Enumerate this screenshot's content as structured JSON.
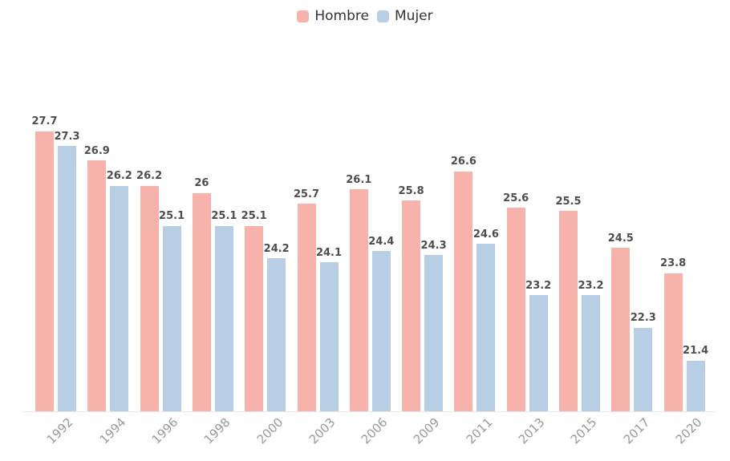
{
  "chart_data": {
    "type": "bar",
    "title": "",
    "categories": [
      "1992",
      "1994",
      "1996",
      "1998",
      "2000",
      "2003",
      "2006",
      "2009",
      "2011",
      "2013",
      "2015",
      "2017",
      "2020"
    ],
    "series": [
      {
        "name": "Hombre",
        "color": "#f8b2ac",
        "values": [
          27.7,
          26.9,
          26.2,
          26,
          25.1,
          25.7,
          26.1,
          25.8,
          26.6,
          25.6,
          25.5,
          24.5,
          23.8
        ]
      },
      {
        "name": "Mujer",
        "color": "#b7cee4",
        "values": [
          27.3,
          26.2,
          25.1,
          25.1,
          24.2,
          24.1,
          24.4,
          24.3,
          24.6,
          23.2,
          23.2,
          22.3,
          21.4
        ]
      }
    ],
    "xlabel": "",
    "ylabel": "",
    "ylim": [
      20,
      28
    ],
    "grid": false,
    "value_labels": true,
    "legend_position": "top-center",
    "x_tick_rotation": -45
  },
  "styles": {
    "background": "#ffffff",
    "value_label_color": "#4d4d4d",
    "axis_label_color": "#999999",
    "axis_line_color": "#e8e8e8",
    "legend_text_color": "#333333"
  }
}
